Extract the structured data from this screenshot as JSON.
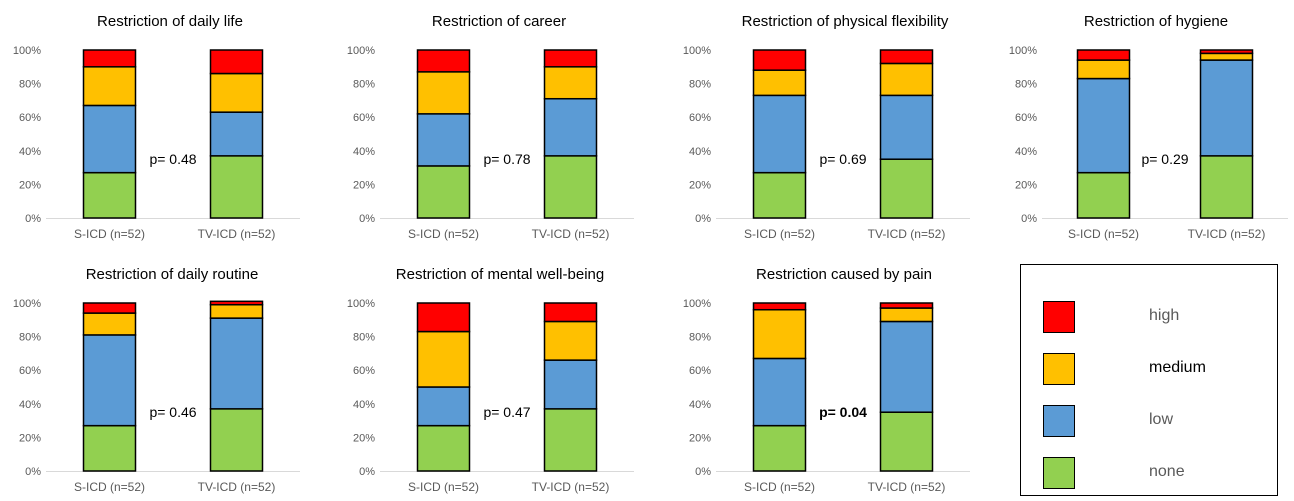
{
  "colors": {
    "high": "#ff0000",
    "medium": "#ffc000",
    "low": "#5b9bd5",
    "none": "#92d050"
  },
  "legend": [
    {
      "key": "high",
      "label": "high"
    },
    {
      "key": "medium",
      "label": "medium"
    },
    {
      "key": "low",
      "label": "low"
    },
    {
      "key": "none",
      "label": "none"
    }
  ],
  "chart_data": [
    {
      "type": "bar",
      "stacked": true,
      "title": "Restriction of daily life",
      "categories": [
        "S-ICD (n=52)",
        "TV-ICD (n=52)"
      ],
      "yticks": [
        "0%",
        "20%",
        "40%",
        "60%",
        "80%",
        "100%"
      ],
      "ylim": [
        0,
        100
      ],
      "series": [
        {
          "name": "none",
          "values": [
            27,
            37
          ]
        },
        {
          "name": "low",
          "values": [
            40,
            26
          ]
        },
        {
          "name": "medium",
          "values": [
            23,
            23
          ]
        },
        {
          "name": "high",
          "values": [
            10,
            14
          ]
        }
      ],
      "annotation": {
        "text": "p= 0.48",
        "bold": false
      }
    },
    {
      "type": "bar",
      "stacked": true,
      "title": "Restriction of career",
      "categories": [
        "S-ICD (n=52)",
        "TV-ICD (n=52)"
      ],
      "yticks": [
        "0%",
        "20%",
        "40%",
        "60%",
        "80%",
        "100%"
      ],
      "ylim": [
        0,
        100
      ],
      "series": [
        {
          "name": "none",
          "values": [
            31,
            37
          ]
        },
        {
          "name": "low",
          "values": [
            31,
            34
          ]
        },
        {
          "name": "medium",
          "values": [
            25,
            19
          ]
        },
        {
          "name": "high",
          "values": [
            13,
            10
          ]
        }
      ],
      "annotation": {
        "text": "p= 0.78",
        "bold": false
      }
    },
    {
      "type": "bar",
      "stacked": true,
      "title": "Restriction of physical flexibility",
      "categories": [
        "S-ICD (n=52)",
        "TV-ICD (n=52)"
      ],
      "yticks": [
        "0%",
        "20%",
        "40%",
        "60%",
        "80%",
        "100%"
      ],
      "ylim": [
        0,
        100
      ],
      "series": [
        {
          "name": "none",
          "values": [
            27,
            35
          ]
        },
        {
          "name": "low",
          "values": [
            46,
            38
          ]
        },
        {
          "name": "medium",
          "values": [
            15,
            19
          ]
        },
        {
          "name": "high",
          "values": [
            12,
            8
          ]
        }
      ],
      "annotation": {
        "text": "p= 0.69",
        "bold": false
      }
    },
    {
      "type": "bar",
      "stacked": true,
      "title": "Restriction of hygiene",
      "categories": [
        "S-ICD (n=52)",
        "TV-ICD (n=52)"
      ],
      "yticks": [
        "0%",
        "20%",
        "40%",
        "60%",
        "80%",
        "100%"
      ],
      "ylim": [
        0,
        100
      ],
      "series": [
        {
          "name": "none",
          "values": [
            27,
            37
          ]
        },
        {
          "name": "low",
          "values": [
            56,
            57
          ]
        },
        {
          "name": "medium",
          "values": [
            11,
            4
          ]
        },
        {
          "name": "high",
          "values": [
            6,
            2
          ]
        }
      ],
      "annotation": {
        "text": "p= 0.29",
        "bold": false
      }
    },
    {
      "type": "bar",
      "stacked": true,
      "title": "Restriction of daily routine",
      "categories": [
        "S-ICD (n=52)",
        "TV-ICD (n=52)"
      ],
      "yticks": [
        "0%",
        "20%",
        "40%",
        "60%",
        "80%",
        "100%"
      ],
      "ylim": [
        0,
        100
      ],
      "series": [
        {
          "name": "none",
          "values": [
            27,
            37
          ]
        },
        {
          "name": "low",
          "values": [
            54,
            54
          ]
        },
        {
          "name": "medium",
          "values": [
            13,
            8
          ]
        },
        {
          "name": "high",
          "values": [
            6,
            2
          ]
        }
      ],
      "annotation": {
        "text": "p= 0.46",
        "bold": false
      }
    },
    {
      "type": "bar",
      "stacked": true,
      "title": "Restriction of mental well-being",
      "categories": [
        "S-ICD (n=52)",
        "TV-ICD (n=52)"
      ],
      "yticks": [
        "0%",
        "20%",
        "40%",
        "60%",
        "80%",
        "100%"
      ],
      "ylim": [
        0,
        100
      ],
      "series": [
        {
          "name": "none",
          "values": [
            27,
            37
          ]
        },
        {
          "name": "low",
          "values": [
            23,
            29
          ]
        },
        {
          "name": "medium",
          "values": [
            33,
            23
          ]
        },
        {
          "name": "high",
          "values": [
            17,
            11
          ]
        }
      ],
      "annotation": {
        "text": "p= 0.47",
        "bold": false
      }
    },
    {
      "type": "bar",
      "stacked": true,
      "title": "Restriction caused by pain",
      "categories": [
        "S-ICD (n=52)",
        "TV-ICD (n=52)"
      ],
      "yticks": [
        "0%",
        "20%",
        "40%",
        "60%",
        "80%",
        "100%"
      ],
      "ylim": [
        0,
        100
      ],
      "series": [
        {
          "name": "none",
          "values": [
            27,
            35
          ]
        },
        {
          "name": "low",
          "values": [
            40,
            54
          ]
        },
        {
          "name": "medium",
          "values": [
            29,
            8
          ]
        },
        {
          "name": "high",
          "values": [
            4,
            3
          ]
        }
      ],
      "annotation": {
        "text": "p= 0.04",
        "bold": true
      }
    }
  ]
}
